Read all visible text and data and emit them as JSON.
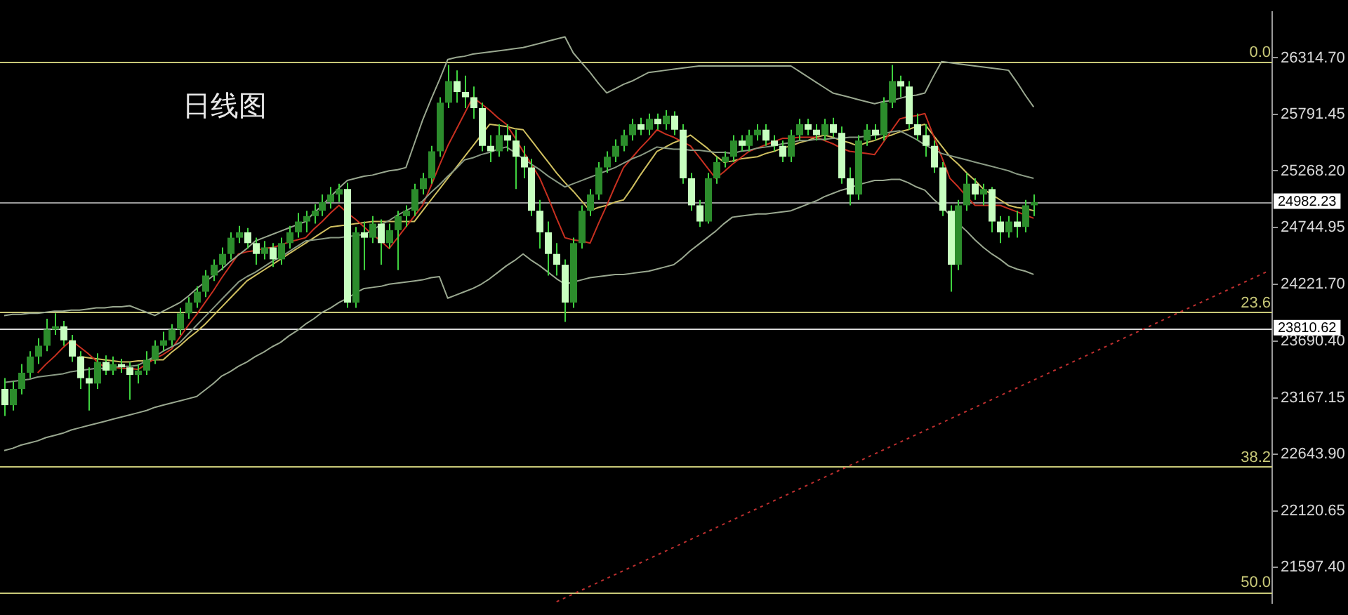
{
  "chart_data": {
    "type": "candlestick",
    "title": "日线图",
    "categories": [
      null,
      null,
      null,
      null,
      null,
      null,
      null,
      null,
      null,
      null,
      null,
      null,
      null,
      null,
      null,
      null,
      null,
      null,
      null,
      null,
      null,
      null,
      null,
      null,
      null,
      null,
      null,
      null,
      null,
      null,
      null,
      null,
      null,
      null,
      null,
      null,
      null,
      null,
      null,
      null,
      null,
      null,
      null,
      null,
      null,
      null,
      null,
      null,
      null,
      null,
      null,
      null,
      null,
      null,
      null,
      null,
      null,
      null,
      null,
      null,
      null,
      null,
      null,
      null,
      null,
      null,
      null,
      null,
      null,
      null,
      null,
      null,
      null,
      null,
      null,
      null,
      null,
      null,
      null,
      null,
      null,
      null,
      null,
      null,
      null,
      null,
      null,
      null,
      null,
      null,
      null,
      null,
      null,
      null,
      null,
      null,
      null,
      null,
      null,
      null,
      null,
      null,
      null,
      null,
      null,
      null,
      null,
      null,
      null,
      null,
      null,
      null,
      null,
      null,
      null,
      null,
      null,
      null,
      null,
      null,
      null,
      null,
      null,
      null,
      null,
      null,
      null,
      null,
      null,
      null,
      null,
      null,
      null,
      null,
      null,
      null,
      null,
      null,
      null,
      null,
      null,
      null,
      null,
      null,
      null,
      null,
      null,
      null,
      null,
      null,
      null,
      null
    ],
    "ohlc": [
      [
        23250,
        23350,
        23000,
        23100
      ],
      [
        23100,
        23320,
        23050,
        23250
      ],
      [
        23250,
        23480,
        23200,
        23400
      ],
      [
        23400,
        23600,
        23350,
        23550
      ],
      [
        23550,
        23720,
        23480,
        23650
      ],
      [
        23650,
        23900,
        23600,
        23800
      ],
      [
        23800,
        23950,
        23750,
        23830
      ],
      [
        23830,
        23880,
        23650,
        23700
      ],
      [
        23700,
        23750,
        23500,
        23550
      ],
      [
        23550,
        23600,
        23250,
        23350
      ],
      [
        23350,
        23450,
        23050,
        23300
      ],
      [
        23300,
        23580,
        23250,
        23500
      ],
      [
        23500,
        23560,
        23380,
        23420
      ],
      [
        23420,
        23550,
        23380,
        23480
      ],
      [
        23480,
        23530,
        23400,
        23450
      ],
      [
        23450,
        23500,
        23150,
        23380
      ],
      [
        23380,
        23480,
        23300,
        23420
      ],
      [
        23420,
        23600,
        23380,
        23520
      ],
      [
        23520,
        23700,
        23480,
        23650
      ],
      [
        23650,
        23780,
        23600,
        23700
      ],
      [
        23700,
        23850,
        23650,
        23800
      ],
      [
        23800,
        24000,
        23750,
        23950
      ],
      [
        23950,
        24100,
        23900,
        24050
      ],
      [
        24050,
        24200,
        24000,
        24150
      ],
      [
        24150,
        24350,
        24100,
        24300
      ],
      [
        24300,
        24450,
        24250,
        24400
      ],
      [
        24400,
        24560,
        24350,
        24500
      ],
      [
        24500,
        24700,
        24450,
        24650
      ],
      [
        24650,
        24760,
        24600,
        24700
      ],
      [
        24700,
        24740,
        24550,
        24600
      ],
      [
        24600,
        24650,
        24400,
        24500
      ],
      [
        24500,
        24620,
        24450,
        24560
      ],
      [
        24560,
        24600,
        24380,
        24450
      ],
      [
        24450,
        24650,
        24400,
        24600
      ],
      [
        24600,
        24760,
        24550,
        24700
      ],
      [
        24700,
        24880,
        24650,
        24800
      ],
      [
        24800,
        24900,
        24700,
        24850
      ],
      [
        24850,
        24960,
        24780,
        24900
      ],
      [
        24900,
        25050,
        24850,
        24980
      ],
      [
        24980,
        25120,
        24920,
        25050
      ],
      [
        25050,
        25150,
        24980,
        25100
      ],
      [
        25100,
        25160,
        24000,
        24050
      ],
      [
        24050,
        24750,
        24000,
        24700
      ],
      [
        24700,
        24800,
        24350,
        24650
      ],
      [
        24650,
        24850,
        24600,
        24780
      ],
      [
        24780,
        24820,
        24400,
        24600
      ],
      [
        24600,
        24780,
        24550,
        24720
      ],
      [
        24720,
        24900,
        24350,
        24850
      ],
      [
        24850,
        24950,
        24750,
        24900
      ],
      [
        24900,
        25150,
        24850,
        25100
      ],
      [
        25100,
        25250,
        25050,
        25200
      ],
      [
        25200,
        25500,
        25150,
        25450
      ],
      [
        25450,
        25950,
        25400,
        25900
      ],
      [
        25900,
        26250,
        25850,
        26100
      ],
      [
        26100,
        26200,
        25900,
        26000
      ],
      [
        26000,
        26150,
        25850,
        25950
      ],
      [
        25950,
        26050,
        25750,
        25850
      ],
      [
        25850,
        25900,
        25450,
        25500
      ],
      [
        25500,
        25600,
        25350,
        25450
      ],
      [
        25450,
        25700,
        25400,
        25600
      ],
      [
        25600,
        25700,
        25450,
        25550
      ],
      [
        25550,
        25650,
        25100,
        25400
      ],
      [
        25400,
        25500,
        25200,
        25300
      ],
      [
        25300,
        25380,
        24850,
        24900
      ],
      [
        24900,
        25000,
        24550,
        24700
      ],
      [
        24700,
        24800,
        24300,
        24500
      ],
      [
        24500,
        24600,
        24300,
        24400
      ],
      [
        24400,
        24450,
        23870,
        24050
      ],
      [
        24050,
        24650,
        24000,
        24600
      ],
      [
        24600,
        24950,
        24550,
        24900
      ],
      [
        24900,
        25100,
        24850,
        25050
      ],
      [
        25050,
        25350,
        25000,
        25300
      ],
      [
        25300,
        25450,
        25250,
        25400
      ],
      [
        25400,
        25560,
        25350,
        25500
      ],
      [
        25500,
        25650,
        25450,
        25600
      ],
      [
        25600,
        25750,
        25550,
        25700
      ],
      [
        25700,
        25760,
        25600,
        25650
      ],
      [
        25650,
        25800,
        25600,
        25750
      ],
      [
        25750,
        25800,
        25650,
        25700
      ],
      [
        25700,
        25830,
        25650,
        25780
      ],
      [
        25780,
        25820,
        25600,
        25650
      ],
      [
        25650,
        25700,
        25150,
        25200
      ],
      [
        25200,
        25250,
        24900,
        24950
      ],
      [
        24950,
        25000,
        24750,
        24800
      ],
      [
        24800,
        25250,
        24780,
        25200
      ],
      [
        25200,
        25400,
        25150,
        25350
      ],
      [
        25350,
        25450,
        25300,
        25400
      ],
      [
        25400,
        25600,
        25350,
        25550
      ],
      [
        25550,
        25600,
        25450,
        25500
      ],
      [
        25500,
        25650,
        25450,
        25600
      ],
      [
        25600,
        25700,
        25550,
        25650
      ],
      [
        25650,
        25700,
        25500,
        25550
      ],
      [
        25550,
        25600,
        25450,
        25500
      ],
      [
        25500,
        25550,
        25350,
        25400
      ],
      [
        25400,
        25650,
        25350,
        25600
      ],
      [
        25600,
        25750,
        25550,
        25700
      ],
      [
        25700,
        25750,
        25600,
        25650
      ],
      [
        25650,
        25700,
        25550,
        25600
      ],
      [
        25600,
        25750,
        25550,
        25700
      ],
      [
        25700,
        25760,
        25580,
        25620
      ],
      [
        25620,
        25680,
        25150,
        25200
      ],
      [
        25200,
        25300,
        24950,
        25050
      ],
      [
        25050,
        25600,
        25000,
        25550
      ],
      [
        25550,
        25700,
        25500,
        25650
      ],
      [
        25650,
        25700,
        25550,
        25600
      ],
      [
        25600,
        25950,
        25550,
        25900
      ],
      [
        25900,
        26250,
        25850,
        26100
      ],
      [
        26100,
        26150,
        25950,
        26050
      ],
      [
        26050,
        26100,
        25650,
        25700
      ],
      [
        25700,
        25800,
        25550,
        25600
      ],
      [
        25600,
        25700,
        25400,
        25500
      ],
      [
        25500,
        25550,
        25250,
        25300
      ],
      [
        25300,
        25350,
        24850,
        24900
      ],
      [
        24900,
        24950,
        24150,
        24400
      ],
      [
        24400,
        25000,
        24350,
        24950
      ],
      [
        24950,
        25250,
        24900,
        25150
      ],
      [
        25150,
        25200,
        25000,
        25050
      ],
      [
        25050,
        25150,
        24950,
        25100
      ],
      [
        25100,
        25120,
        24700,
        24800
      ],
      [
        24800,
        24850,
        24600,
        24700
      ],
      [
        24700,
        24850,
        24650,
        24800
      ],
      [
        24800,
        24900,
        24650,
        24750
      ],
      [
        24750,
        25000,
        24700,
        24950
      ],
      [
        24950,
        25050,
        24850,
        24980
      ],
      null,
      null,
      null,
      null,
      null,
      null,
      null,
      null,
      null,
      null,
      null,
      null,
      null,
      null,
      null,
      null,
      null,
      null,
      null,
      null,
      null,
      null,
      null,
      null,
      null,
      null,
      null,
      null
    ],
    "series": [
      {
        "type": "line",
        "color": "#9aa890",
        "values": [
          23930,
          23940,
          23940,
          23950,
          23950,
          23960,
          23970,
          23970,
          23980,
          23980,
          23990,
          24000,
          24000,
          24010,
          24010,
          24020,
          23990,
          23960,
          23930,
          23970,
          24010,
          24050,
          24110,
          24180,
          24240,
          24300,
          24360,
          24430,
          24490,
          24550,
          24620,
          24650,
          24680,
          24710,
          24740,
          24770,
          24800,
          24880,
          24950,
          25030,
          25110,
          25180,
          25200,
          25220,
          25230,
          25250,
          25270,
          25280,
          25300,
          25520,
          25740,
          25930,
          26110,
          26300,
          26320,
          26330,
          26350,
          26360,
          26370,
          26380,
          26390,
          26400,
          26410,
          26430,
          26450,
          26470,
          26490,
          26510,
          26360,
          26270,
          26180,
          26080,
          25990,
          26030,
          26070,
          26100,
          26140,
          26180,
          26190,
          26200,
          26210,
          26220,
          26230,
          26240,
          26240,
          26240,
          26240,
          26240,
          26240,
          26240,
          26240,
          26240,
          26240,
          26240,
          26240,
          26190,
          26140,
          26090,
          26040,
          25990,
          25970,
          25950,
          25930,
          25910,
          25890,
          25910,
          25920,
          25940,
          25960,
          25970,
          25990,
          26140,
          26280,
          26270,
          26260,
          26250,
          26240,
          26230,
          26220,
          26210,
          26200,
          26090,
          25970,
          25860,
          null,
          null,
          null,
          null,
          null,
          null,
          null,
          null,
          null,
          null,
          null,
          null,
          null,
          null,
          null,
          null,
          null,
          null,
          null,
          null,
          null,
          null,
          null,
          null,
          null,
          null,
          null,
          null
        ]
      },
      {
        "type": "line",
        "color": "#9aa890",
        "values": [
          22680,
          22700,
          22730,
          22750,
          22770,
          22800,
          22820,
          22840,
          22870,
          22890,
          22910,
          22930,
          22950,
          22970,
          22990,
          23010,
          23030,
          23050,
          23080,
          23100,
          23120,
          23140,
          23160,
          23180,
          23240,
          23300,
          23370,
          23410,
          23460,
          23500,
          23550,
          23590,
          23640,
          23680,
          23740,
          23790,
          23850,
          23900,
          23960,
          24000,
          24050,
          24090,
          24140,
          24180,
          24190,
          24200,
          24220,
          24230,
          24240,
          24250,
          24260,
          24280,
          24290,
          24090,
          24120,
          24150,
          24180,
          24220,
          24270,
          24330,
          24390,
          24440,
          24500,
          24440,
          24390,
          24330,
          24270,
          24220,
          24240,
          24260,
          24280,
          24290,
          24300,
          24310,
          24310,
          24320,
          24330,
          24340,
          24360,
          24380,
          24400,
          24460,
          24530,
          24590,
          24650,
          24710,
          24780,
          24840,
          24850,
          24860,
          24870,
          24870,
          24880,
          24890,
          24900,
          24930,
          24960,
          24990,
          25030,
          25060,
          25090,
          25110,
          25140,
          25160,
          25180,
          25180,
          25190,
          25190,
          25160,
          25120,
          25090,
          25010,
          24940,
          24860,
          24780,
          24710,
          24630,
          24560,
          24500,
          24450,
          24390,
          24360,
          24340,
          24310,
          null,
          null,
          null,
          null,
          null,
          null,
          null,
          null,
          null,
          null,
          null,
          null,
          null,
          null,
          null,
          null,
          null,
          null,
          null,
          null,
          null,
          null,
          null,
          null,
          null,
          null,
          null,
          null
        ]
      },
      {
        "type": "line",
        "color": "#8a9a84",
        "values": [
          23310,
          23320,
          23330,
          23340,
          23360,
          23370,
          23380,
          23390,
          23410,
          23420,
          23430,
          23440,
          23440,
          23450,
          23460,
          23460,
          23470,
          23510,
          23550,
          23600,
          23640,
          23680,
          23760,
          23840,
          23920,
          24000,
          24080,
          24160,
          24240,
          24290,
          24330,
          24380,
          24430,
          24470,
          24520,
          24570,
          24620,
          24630,
          24640,
          24650,
          24650,
          24660,
          24670,
          24680,
          24720,
          24770,
          24810,
          24860,
          24900,
          24940,
          24990,
          25070,
          25140,
          25220,
          25290,
          25370,
          25390,
          25420,
          25440,
          25470,
          25490,
          25440,
          25380,
          25330,
          25280,
          25220,
          25170,
          25120,
          25150,
          25180,
          25210,
          25240,
          25270,
          25300,
          25340,
          25380,
          25410,
          25450,
          25490,
          25480,
          25470,
          25470,
          25460,
          25460,
          25450,
          25440,
          25440,
          25430,
          25450,
          25460,
          25480,
          25490,
          25500,
          25520,
          25530,
          25550,
          25550,
          25560,
          25560,
          25570,
          25570,
          25580,
          25580,
          25590,
          25600,
          25610,
          25630,
          25640,
          25600,
          25560,
          25510,
          25470,
          25430,
          25410,
          25390,
          25370,
          25350,
          25330,
          25310,
          25290,
          25270,
          25240,
          25220,
          25200,
          null,
          null,
          null,
          null,
          null,
          null,
          null,
          null,
          null,
          null,
          null,
          null,
          null,
          null,
          null,
          null,
          null,
          null,
          null,
          null,
          null,
          null,
          null,
          null,
          null,
          null,
          null,
          null
        ]
      },
      {
        "type": "line",
        "color": "#c83020",
        "values": [
          null,
          null,
          null,
          null,
          23400,
          23480,
          23550,
          23630,
          23700,
          23640,
          23580,
          23510,
          23450,
          23450,
          23440,
          23440,
          23430,
          23480,
          23530,
          23570,
          23620,
          23730,
          23840,
          23940,
          24050,
          24160,
          24280,
          24390,
          24500,
          24520,
          24530,
          24550,
          24560,
          24580,
          24610,
          24630,
          24650,
          24730,
          24800,
          24880,
          24950,
          24880,
          24820,
          24750,
          24680,
          24620,
          24550,
          24650,
          24750,
          24850,
          24950,
          25130,
          25320,
          25500,
          25650,
          25800,
          25950,
          25890,
          25830,
          25760,
          25700,
          25580,
          25450,
          25330,
          25200,
          25020,
          24830,
          24650,
          24630,
          24620,
          24600,
          24780,
          24950,
          25130,
          25300,
          25390,
          25480,
          25560,
          25650,
          25610,
          25580,
          25540,
          25500,
          25400,
          25300,
          25200,
          25260,
          25330,
          25390,
          25450,
          25480,
          25510,
          25540,
          25570,
          25570,
          25580,
          25580,
          25580,
          25550,
          25520,
          25480,
          25450,
          25440,
          25430,
          25420,
          25530,
          25640,
          25750,
          25770,
          25780,
          25800,
          25600,
          25400,
          25200,
          25120,
          25030,
          24950,
          24950,
          24950,
          24950,
          24920,
          24890,
          24860,
          24830,
          null,
          null,
          null,
          null,
          null,
          null,
          null,
          null,
          null,
          null,
          null,
          null,
          null,
          null,
          null,
          null,
          null,
          null,
          null,
          null,
          null,
          null,
          null,
          null,
          null,
          null,
          null,
          null
        ]
      },
      {
        "type": "line",
        "color": "#d0c060",
        "values": [
          null,
          null,
          null,
          null,
          null,
          null,
          null,
          null,
          null,
          23550,
          23540,
          23530,
          23520,
          23510,
          23500,
          23500,
          23510,
          23510,
          23520,
          23520,
          23590,
          23650,
          23720,
          23780,
          23850,
          23930,
          24010,
          24090,
          24170,
          24250,
          24300,
          24350,
          24400,
          24450,
          24500,
          24550,
          24600,
          24650,
          24700,
          24750,
          24760,
          24770,
          24780,
          24790,
          24800,
          24800,
          24800,
          24800,
          24800,
          24800,
          24900,
          25000,
          25100,
          25200,
          25300,
          25400,
          25500,
          25600,
          25700,
          25690,
          25680,
          25660,
          25650,
          25550,
          25450,
          25350,
          25250,
          25160,
          25080,
          24990,
          24900,
          24930,
          24950,
          24980,
          25000,
          25110,
          25230,
          25340,
          25450,
          25490,
          25530,
          25560,
          25600,
          25540,
          25480,
          25410,
          25350,
          25360,
          25380,
          25390,
          25400,
          25430,
          25450,
          25480,
          25500,
          25530,
          25550,
          25580,
          25600,
          25580,
          25550,
          25530,
          25500,
          25530,
          25550,
          25580,
          25600,
          25630,
          25650,
          25680,
          25700,
          25600,
          25500,
          25400,
          25330,
          25250,
          25180,
          25100,
          25050,
          25000,
          24950,
          24930,
          24920,
          24900,
          null,
          null,
          null,
          null,
          null,
          null,
          null,
          null,
          null,
          null,
          null,
          null,
          null,
          null,
          null,
          null,
          null,
          null,
          null,
          null,
          null,
          null,
          null,
          null,
          null,
          null,
          null,
          null
        ]
      },
      {
        "type": "line",
        "color": "#c03030",
        "line_style": "dotted",
        "values": [
          null,
          null,
          null,
          null,
          null,
          null,
          null,
          null,
          null,
          null,
          null,
          null,
          null,
          null,
          null,
          null,
          null,
          null,
          null,
          null,
          null,
          null,
          null,
          null,
          null,
          null,
          null,
          null,
          null,
          null,
          null,
          null,
          null,
          null,
          null,
          null,
          null,
          null,
          null,
          null,
          null,
          null,
          null,
          null,
          null,
          null,
          null,
          null,
          null,
          null,
          null,
          null,
          null,
          null,
          null,
          null,
          null,
          null,
          null,
          null,
          null,
          null,
          null,
          null,
          null,
          null,
          21280,
          21316,
          21352,
          21388,
          21424,
          21460,
          21496,
          21532,
          21568,
          21604,
          21640,
          21676,
          21712,
          21748,
          21784,
          21820,
          21856,
          21892,
          21928,
          21964,
          22000,
          22036,
          22072,
          22108,
          22144,
          22180,
          22216,
          22252,
          22288,
          22324,
          22360,
          22396,
          22432,
          22468,
          22504,
          22540,
          22576,
          22612,
          22648,
          22684,
          22720,
          22756,
          22792,
          22828,
          22864,
          22900,
          22936,
          22972,
          23008,
          23044,
          23080,
          23116,
          23152,
          23188,
          23224,
          23260,
          23296,
          23332,
          23368,
          23404,
          23440,
          23476,
          23512,
          23548,
          23584,
          23620,
          23656,
          23692,
          23728,
          23764,
          23800,
          23836,
          23872,
          23908,
          23944,
          23980,
          24016,
          24052,
          24088,
          24124,
          24160,
          24196,
          24232,
          24268,
          24304,
          24340
        ]
      }
    ],
    "ref_lines": [
      {
        "axis": "y",
        "value": 26280,
        "color": "#c8c878"
      },
      {
        "axis": "y",
        "value": 23960,
        "color": "#c8c878"
      },
      {
        "axis": "y",
        "value": 22530,
        "color": "#c8c878"
      },
      {
        "axis": "y",
        "value": 21370,
        "color": "#c8c878"
      },
      {
        "axis": "y",
        "value": 24982.23,
        "label": "24982.23",
        "color": "#9a9a9a"
      },
      {
        "axis": "y",
        "value": 23810.62,
        "label": "23810.62",
        "color": "#d8d8d8"
      }
    ],
    "annotations": [
      {
        "text": "0.0",
        "y": 26280
      },
      {
        "text": "23.6",
        "y": 23960
      },
      {
        "text": "38.2",
        "y": 22530
      },
      {
        "text": "50.0",
        "y": 21370
      }
    ],
    "ylim": [
      21269,
      26739
    ],
    "yticks": [
      {
        "value": 26314.7,
        "label": "26314.70"
      },
      {
        "value": 25791.45,
        "label": "25791.45"
      },
      {
        "value": 25268.2,
        "label": "25268.20"
      },
      {
        "value": 24744.95,
        "label": "24744.95"
      },
      {
        "value": 24221.7,
        "label": "24221.70"
      },
      {
        "value": 23690.4,
        "label": "23690.40"
      },
      {
        "value": 23167.15,
        "label": "23167.15"
      },
      {
        "value": 22643.9,
        "label": "22643.90"
      },
      {
        "value": 22120.65,
        "label": "22120.65"
      },
      {
        "value": 21597.4,
        "label": "21597.40"
      }
    ],
    "tick_labels": "y"
  }
}
